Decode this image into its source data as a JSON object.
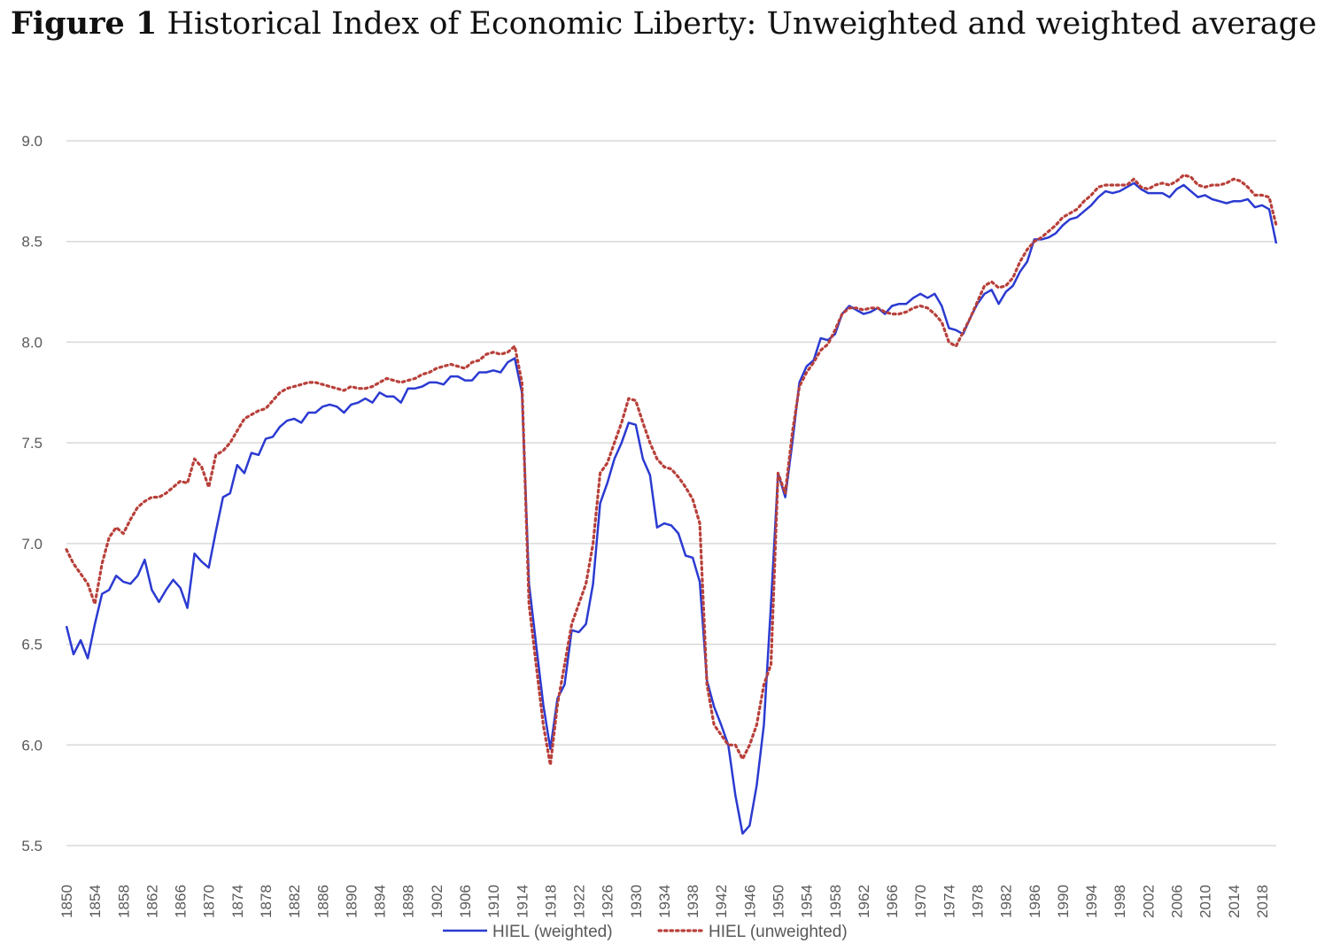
{
  "title": {
    "prefix": "Figure 1",
    "text": " Historical Index of Economic Liberty: Unweighted and weighted average"
  },
  "colors": {
    "weighted": "#2b3ad1",
    "unweighted": "#b8403a",
    "grid": "#d9d9d9",
    "axis": "#595959"
  },
  "chart_data": {
    "type": "line",
    "title": "Figure 1 Historical Index of Economic Liberty: Unweighted and weighted average",
    "xlabel": "",
    "ylabel": "",
    "xlim": [
      1850,
      2020
    ],
    "ylim": [
      5.5,
      9.0
    ],
    "yticks": [
      "5.5",
      "6.0",
      "6.5",
      "7.0",
      "7.5",
      "8.0",
      "8.5",
      "9.0"
    ],
    "xticks": [
      "1850",
      "1854",
      "1858",
      "1862",
      "1866",
      "1870",
      "1874",
      "1878",
      "1882",
      "1886",
      "1890",
      "1894",
      "1898",
      "1902",
      "1906",
      "1910",
      "1914",
      "1918",
      "1922",
      "1926",
      "1930",
      "1934",
      "1938",
      "1942",
      "1946",
      "1950",
      "1954",
      "1958",
      "1962",
      "1966",
      "1970",
      "1974",
      "1978",
      "1982",
      "1986",
      "1990",
      "1994",
      "1998",
      "2002",
      "2006",
      "2010",
      "2014",
      "2018"
    ],
    "grid": true,
    "legend_position": "bottom",
    "series": [
      {
        "name": "HIEL (weighted)",
        "x": [
          1850,
          1851,
          1852,
          1853,
          1854,
          1855,
          1856,
          1857,
          1858,
          1859,
          1860,
          1861,
          1862,
          1863,
          1864,
          1865,
          1866,
          1867,
          1868,
          1869,
          1870,
          1871,
          1872,
          1873,
          1874,
          1875,
          1876,
          1877,
          1878,
          1879,
          1880,
          1881,
          1882,
          1883,
          1884,
          1885,
          1886,
          1887,
          1888,
          1889,
          1890,
          1891,
          1892,
          1893,
          1894,
          1895,
          1896,
          1897,
          1898,
          1899,
          1900,
          1901,
          1902,
          1903,
          1904,
          1905,
          1906,
          1907,
          1908,
          1909,
          1910,
          1911,
          1912,
          1913,
          1914,
          1915,
          1916,
          1917,
          1918,
          1919,
          1920,
          1921,
          1922,
          1923,
          1924,
          1925,
          1926,
          1927,
          1928,
          1929,
          1930,
          1931,
          1932,
          1933,
          1934,
          1935,
          1936,
          1937,
          1938,
          1939,
          1940,
          1941,
          1942,
          1943,
          1944,
          1945,
          1946,
          1947,
          1948,
          1949,
          1950,
          1951,
          1952,
          1953,
          1954,
          1955,
          1956,
          1957,
          1958,
          1959,
          1960,
          1961,
          1962,
          1963,
          1964,
          1965,
          1966,
          1967,
          1968,
          1969,
          1970,
          1971,
          1972,
          1973,
          1974,
          1975,
          1976,
          1977,
          1978,
          1979,
          1980,
          1981,
          1982,
          1983,
          1984,
          1985,
          1986,
          1987,
          1988,
          1989,
          1990,
          1991,
          1992,
          1993,
          1994,
          1995,
          1996,
          1997,
          1998,
          1999,
          2000,
          2001,
          2002,
          2003,
          2004,
          2005,
          2006,
          2007,
          2008,
          2009,
          2010,
          2011,
          2012,
          2013,
          2014,
          2015,
          2016,
          2017,
          2018,
          2019,
          2020
        ],
        "values": [
          6.59,
          6.45,
          6.52,
          6.43,
          6.6,
          6.75,
          6.77,
          6.84,
          6.81,
          6.8,
          6.84,
          6.92,
          6.77,
          6.71,
          6.77,
          6.82,
          6.78,
          6.68,
          6.95,
          6.91,
          6.88,
          7.06,
          7.23,
          7.25,
          7.39,
          7.35,
          7.45,
          7.44,
          7.52,
          7.53,
          7.58,
          7.61,
          7.62,
          7.6,
          7.65,
          7.65,
          7.68,
          7.69,
          7.68,
          7.65,
          7.69,
          7.7,
          7.72,
          7.7,
          7.75,
          7.73,
          7.73,
          7.7,
          7.77,
          7.77,
          7.78,
          7.8,
          7.8,
          7.79,
          7.83,
          7.83,
          7.81,
          7.81,
          7.85,
          7.85,
          7.86,
          7.85,
          7.9,
          7.92,
          7.75,
          6.8,
          6.5,
          6.2,
          5.98,
          6.23,
          6.3,
          6.57,
          6.56,
          6.6,
          6.8,
          7.2,
          7.3,
          7.42,
          7.5,
          7.6,
          7.59,
          7.42,
          7.34,
          7.08,
          7.1,
          7.09,
          7.05,
          6.94,
          6.93,
          6.81,
          6.32,
          6.19,
          6.1,
          6.0,
          5.75,
          5.56,
          5.6,
          5.8,
          6.1,
          6.7,
          7.35,
          7.23,
          7.5,
          7.8,
          7.88,
          7.91,
          8.02,
          8.01,
          8.04,
          8.14,
          8.18,
          8.16,
          8.14,
          8.15,
          8.17,
          8.14,
          8.18,
          8.19,
          8.19,
          8.22,
          8.24,
          8.22,
          8.24,
          8.18,
          8.07,
          8.06,
          8.04,
          8.12,
          8.19,
          8.24,
          8.26,
          8.19,
          8.25,
          8.28,
          8.35,
          8.4,
          8.51,
          8.51,
          8.52,
          8.54,
          8.58,
          8.61,
          8.62,
          8.65,
          8.68,
          8.72,
          8.75,
          8.74,
          8.75,
          8.77,
          8.79,
          8.76,
          8.74,
          8.74,
          8.74,
          8.72,
          8.76,
          8.78,
          8.75,
          8.72,
          8.73,
          8.71,
          8.7,
          8.69,
          8.7,
          8.7,
          8.71,
          8.67,
          8.68,
          8.66,
          8.49
        ]
      },
      {
        "name": "HIEL (unweighted)",
        "x": [
          1850,
          1851,
          1852,
          1853,
          1854,
          1855,
          1856,
          1857,
          1858,
          1859,
          1860,
          1861,
          1862,
          1863,
          1864,
          1865,
          1866,
          1867,
          1868,
          1869,
          1870,
          1871,
          1872,
          1873,
          1874,
          1875,
          1876,
          1877,
          1878,
          1879,
          1880,
          1881,
          1882,
          1883,
          1884,
          1885,
          1886,
          1887,
          1888,
          1889,
          1890,
          1891,
          1892,
          1893,
          1894,
          1895,
          1896,
          1897,
          1898,
          1899,
          1900,
          1901,
          1902,
          1903,
          1904,
          1905,
          1906,
          1907,
          1908,
          1909,
          1910,
          1911,
          1912,
          1913,
          1914,
          1915,
          1916,
          1917,
          1918,
          1919,
          1920,
          1921,
          1922,
          1923,
          1924,
          1925,
          1926,
          1927,
          1928,
          1929,
          1930,
          1931,
          1932,
          1933,
          1934,
          1935,
          1936,
          1937,
          1938,
          1939,
          1940,
          1941,
          1942,
          1943,
          1944,
          1945,
          1946,
          1947,
          1948,
          1949,
          1950,
          1951,
          1952,
          1953,
          1954,
          1955,
          1956,
          1957,
          1958,
          1959,
          1960,
          1961,
          1962,
          1963,
          1964,
          1965,
          1966,
          1967,
          1968,
          1969,
          1970,
          1971,
          1972,
          1973,
          1974,
          1975,
          1976,
          1977,
          1978,
          1979,
          1980,
          1981,
          1982,
          1983,
          1984,
          1985,
          1986,
          1987,
          1988,
          1989,
          1990,
          1991,
          1992,
          1993,
          1994,
          1995,
          1996,
          1997,
          1998,
          1999,
          2000,
          2001,
          2002,
          2003,
          2004,
          2005,
          2006,
          2007,
          2008,
          2009,
          2010,
          2011,
          2012,
          2013,
          2014,
          2015,
          2016,
          2017,
          2018,
          2019,
          2020
        ],
        "values": [
          6.97,
          6.9,
          6.85,
          6.8,
          6.7,
          6.9,
          7.03,
          7.08,
          7.05,
          7.12,
          7.18,
          7.21,
          7.23,
          7.23,
          7.25,
          7.28,
          7.31,
          7.3,
          7.42,
          7.38,
          7.28,
          7.44,
          7.46,
          7.5,
          7.56,
          7.62,
          7.64,
          7.66,
          7.67,
          7.71,
          7.75,
          7.77,
          7.78,
          7.79,
          7.8,
          7.8,
          7.79,
          7.78,
          7.77,
          7.76,
          7.78,
          7.77,
          7.77,
          7.78,
          7.8,
          7.82,
          7.81,
          7.8,
          7.81,
          7.82,
          7.84,
          7.85,
          7.87,
          7.88,
          7.89,
          7.88,
          7.87,
          7.9,
          7.91,
          7.94,
          7.95,
          7.94,
          7.95,
          7.98,
          7.8,
          6.7,
          6.4,
          6.1,
          5.9,
          6.2,
          6.4,
          6.6,
          6.7,
          6.8,
          7.0,
          7.35,
          7.4,
          7.5,
          7.6,
          7.72,
          7.71,
          7.6,
          7.5,
          7.42,
          7.38,
          7.37,
          7.33,
          7.28,
          7.22,
          7.1,
          6.3,
          6.1,
          6.05,
          6.0,
          6.0,
          5.93,
          6.0,
          6.1,
          6.3,
          6.4,
          7.35,
          7.25,
          7.55,
          7.78,
          7.85,
          7.9,
          7.96,
          7.99,
          8.06,
          8.14,
          8.17,
          8.17,
          8.16,
          8.17,
          8.17,
          8.15,
          8.14,
          8.14,
          8.15,
          8.17,
          8.18,
          8.17,
          8.14,
          8.1,
          8.0,
          7.98,
          8.05,
          8.12,
          8.2,
          8.28,
          8.3,
          8.27,
          8.28,
          8.32,
          8.4,
          8.46,
          8.5,
          8.52,
          8.55,
          8.58,
          8.62,
          8.64,
          8.66,
          8.7,
          8.73,
          8.77,
          8.78,
          8.78,
          8.78,
          8.78,
          8.81,
          8.77,
          8.76,
          8.78,
          8.79,
          8.78,
          8.8,
          8.83,
          8.82,
          8.78,
          8.77,
          8.78,
          8.78,
          8.79,
          8.81,
          8.8,
          8.77,
          8.73,
          8.73,
          8.72,
          8.58
        ]
      }
    ]
  }
}
